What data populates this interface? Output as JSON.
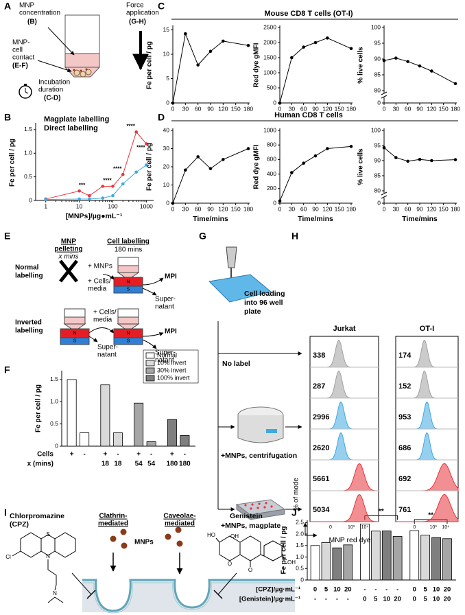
{
  "panel_letters": [
    "A",
    "B",
    "C",
    "D",
    "E",
    "F",
    "G",
    "H",
    "I",
    "J"
  ],
  "panel_a": {
    "concentration": [
      "MNP",
      "concentration"
    ],
    "concentration_ref": "(B)",
    "force": [
      "Force",
      "application"
    ],
    "force_ref": "(G-H)",
    "contact": [
      "MNP-",
      "cell",
      "contact"
    ],
    "contact_ref": "(E-F)",
    "incubation": [
      "Incubation",
      "duration"
    ],
    "incubation_ref": "(C-D)"
  },
  "group_titles": {
    "c": "Mouse CD8 T cells (OT-I)",
    "d": "Human CD8 T cells"
  },
  "chart_data": [
    {
      "type": "line",
      "log_x": true,
      "xlabel": "[MNPs]/µg●mL⁻¹",
      "ylabel": "Fe per cell / pg",
      "xlim": [
        0.5,
        1500
      ],
      "ylim": [
        0,
        1.6
      ],
      "xticks": [
        1,
        10,
        100,
        1000
      ],
      "yticks": [
        0,
        0.5,
        {
          "value": 1,
          "label": "1.0"
        },
        {
          "value": 1.5,
          "label": "1.5"
        }
      ],
      "x": [
        1,
        10,
        20,
        50,
        100,
        200,
        500,
        1000
      ],
      "series": [
        {
          "name": "Magplate labelling",
          "color": "#e8333a",
          "values": [
            0.03,
            0.2,
            0.1,
            0.3,
            0.3,
            0.55,
            1.45,
            1.2
          ]
        },
        {
          "name": "Direct labelling",
          "color": "#3fa9e0",
          "values": [
            0.02,
            0.03,
            0.03,
            0.05,
            0.1,
            0.35,
            0.6,
            0.75
          ]
        }
      ],
      "annotations": [
        "***",
        "****",
        "****",
        "****",
        "****"
      ],
      "legend": "upper-left"
    },
    {
      "type": "line",
      "ylabel": "Fe per cell / pg",
      "x": [
        0,
        30,
        60,
        90,
        120,
        180
      ],
      "xlim": [
        0,
        180
      ],
      "xticks": [
        0,
        30,
        60,
        90,
        120,
        150,
        180
      ],
      "ylim": [
        0,
        15.5
      ],
      "yticks": [
        0,
        5,
        10,
        15
      ],
      "series": [
        {
          "color": "#000000",
          "values": [
            0,
            14.2,
            7.8,
            10.6,
            12.7,
            11.8
          ]
        }
      ]
    },
    {
      "type": "line",
      "ylabel": "Red dye gMFI",
      "x": [
        0,
        30,
        60,
        90,
        120,
        180
      ],
      "xlim": [
        0,
        180
      ],
      "xticks": [
        0,
        30,
        60,
        90,
        120,
        150,
        180
      ],
      "ylim": [
        0,
        2500
      ],
      "yticks": [
        0,
        500,
        1000,
        1500,
        2000,
        2500
      ],
      "series": [
        {
          "color": "#000000",
          "values": [
            0,
            1500,
            1850,
            2000,
            2150,
            1800
          ]
        }
      ]
    },
    {
      "type": "line",
      "ylabel": "% live cells",
      "x": [
        0,
        30,
        60,
        90,
        120,
        180
      ],
      "xlim": [
        0,
        180
      ],
      "xticks": [
        0,
        30,
        60,
        90,
        120,
        150,
        180
      ],
      "ylim": [
        80,
        100
      ],
      "yticks": [
        80,
        85,
        90,
        95,
        100
      ],
      "axis_floor": 0,
      "series": [
        {
          "color": "#000000",
          "values": [
            89.5,
            90.3,
            89.2,
            87.8,
            86.2,
            82.2
          ]
        }
      ]
    },
    {
      "type": "line",
      "ylabel": "Fe per cell / pg",
      "xlabel": "Time/mins",
      "x": [
        0,
        30,
        60,
        90,
        120,
        180
      ],
      "xlim": [
        0,
        180
      ],
      "xticks": [
        0,
        30,
        60,
        90,
        120,
        150,
        180
      ],
      "ylim": [
        0,
        40
      ],
      "yticks": [
        0,
        10,
        20,
        30,
        40
      ],
      "series": [
        {
          "color": "#000000",
          "values": [
            0,
            18.2,
            25.5,
            19,
            24,
            30
          ]
        }
      ]
    },
    {
      "type": "line",
      "ylabel": "Red dye gMFI",
      "xlabel": "Time/mins",
      "x": [
        0,
        30,
        60,
        90,
        120,
        180
      ],
      "xlim": [
        0,
        180
      ],
      "xticks": [
        0,
        30,
        60,
        90,
        120,
        150,
        180
      ],
      "ylim": [
        0,
        1000
      ],
      "yticks": [
        0,
        200,
        400,
        600,
        800,
        1000
      ],
      "series": [
        {
          "color": "#000000",
          "values": [
            30,
            420,
            550,
            650,
            750,
            780
          ]
        }
      ]
    },
    {
      "type": "line",
      "ylabel": "% live cells",
      "xlabel": "Time/mins",
      "x": [
        0,
        30,
        60,
        90,
        120,
        180
      ],
      "xlim": [
        0,
        180
      ],
      "xticks": [
        0,
        30,
        60,
        90,
        120,
        150,
        180
      ],
      "ylim": [
        80,
        100
      ],
      "yticks": [
        80,
        85,
        90,
        95,
        100
      ],
      "axis_floor": 0,
      "series": [
        {
          "color": "#000000",
          "values": [
            94.3,
            91,
            89.8,
            90.4,
            90,
            90.3
          ]
        }
      ]
    },
    {
      "type": "grouped_bar",
      "ylabel": "Fe per cell / pg",
      "ylim": [
        0,
        1.7
      ],
      "yticks": [
        0,
        0.5,
        {
          "value": 1,
          "label": "1.0"
        },
        {
          "value": 1.5,
          "label": "1.5"
        }
      ],
      "series": [
        {
          "name": "Normal",
          "color": "#ffffff",
          "values": [
            1.5,
            0.3
          ]
        },
        {
          "name": "10% invert",
          "color": "#d9d9d9",
          "values": [
            1.38,
            0.3
          ]
        },
        {
          "name": "30% invert",
          "color": "#a6a6a6",
          "values": [
            0.97,
            0.1
          ]
        },
        {
          "name": "100% invert",
          "color": "#7f7f7f",
          "values": [
            0.6,
            0.24
          ]
        }
      ],
      "rows": [
        {
          "label": "Cells",
          "values": [
            "+",
            "-",
            "+",
            "-",
            "+",
            "-",
            "+",
            "-"
          ]
        },
        {
          "label": "x (mins)",
          "values": [
            null,
            null,
            18,
            18,
            54,
            54,
            180,
            180
          ]
        }
      ],
      "legend": "upper-right"
    },
    {
      "type": "bar",
      "ylabel": "Fe per cell / pg",
      "ylim": [
        0,
        2.6
      ],
      "yticks": [
        0,
        0.5,
        {
          "value": 1,
          "label": "1.0"
        },
        {
          "value": 1.5,
          "label": "1.5"
        },
        {
          "value": 2,
          "label": "2.0"
        },
        {
          "value": 2.5,
          "label": "2.5"
        }
      ],
      "values": [
        1.5,
        1.63,
        1.4,
        1.53,
        2.44,
        2.13,
        2.14,
        1.9,
        2.15,
        1.95,
        1.85,
        1.8
      ],
      "colors": [
        "#ffffff",
        "#d9d9d9",
        "#7f7f7f",
        "#a6a6a6"
      ],
      "rows": [
        {
          "label": "[CPZ]/µg·mL⁻¹",
          "values": [
            0,
            5,
            10,
            20,
            "-",
            "-",
            "-",
            "-",
            0,
            5,
            10,
            20
          ]
        },
        {
          "label": "[Genistein]/µg·mL⁻¹",
          "values": [
            "-",
            "-",
            "-",
            "-",
            0,
            5,
            10,
            20,
            0,
            5,
            10,
            20
          ]
        }
      ],
      "annotations": [
        "**",
        "**"
      ]
    }
  ],
  "panel_e": {
    "pelleting": [
      "MNP",
      "pelleting"
    ],
    "pelleting_time": "x mins",
    "labelling": "Cell labelling",
    "labelling_time": "180 mins",
    "normal": [
      "Normal",
      "labelling"
    ],
    "inverted": [
      "Inverted",
      "labelling"
    ],
    "mnps": "+ MNPs",
    "cells": [
      "+ Cells/",
      "media"
    ],
    "mpi": "MPI",
    "supernatant": [
      "Super-",
      "natant"
    ],
    "tube_top": "N",
    "tube_bottom": "S"
  },
  "panel_g": {
    "loading": [
      "Cell loading",
      "into 96 well",
      "plate"
    ],
    "no_label": "No label",
    "centrifugation": "+MNPs, centrifugation",
    "magplate": "+MNPs, magplate"
  },
  "panel_h": {
    "columns": [
      "Jurkat",
      "OT-I"
    ],
    "values": [
      [
        338,
        287,
        2996,
        2620,
        5661,
        5034
      ],
      [
        174,
        152,
        953,
        686,
        692,
        761
      ]
    ],
    "row_colors": [
      "#a0a0a0",
      "#a0a0a0",
      "#3fa9e0",
      "#3fa9e0",
      "#e8333a",
      "#e8333a"
    ],
    "label_colors": [
      "#000000",
      "#000000",
      "#2a9ad8",
      "#2a9ad8",
      "#d8262d",
      "#d8262d"
    ],
    "ylabel": "% of mode",
    "xlabel": "MNP red dye",
    "xticks": [
      "0",
      "10³",
      "10⁴"
    ]
  },
  "panel_i": {
    "cpz": [
      "Chlorpromazine",
      "(CPZ)"
    ],
    "clathrin": [
      "Clathrin-",
      "mediated"
    ],
    "mnps": "MNPs",
    "caveolae": [
      "Caveolae-",
      "mediated"
    ],
    "genistein": "Genistein",
    "cpz_atoms": [
      "S",
      "N",
      "Cl",
      "N"
    ],
    "genistein_atoms": [
      "HO",
      "O",
      "OH",
      "O",
      "OH"
    ]
  }
}
